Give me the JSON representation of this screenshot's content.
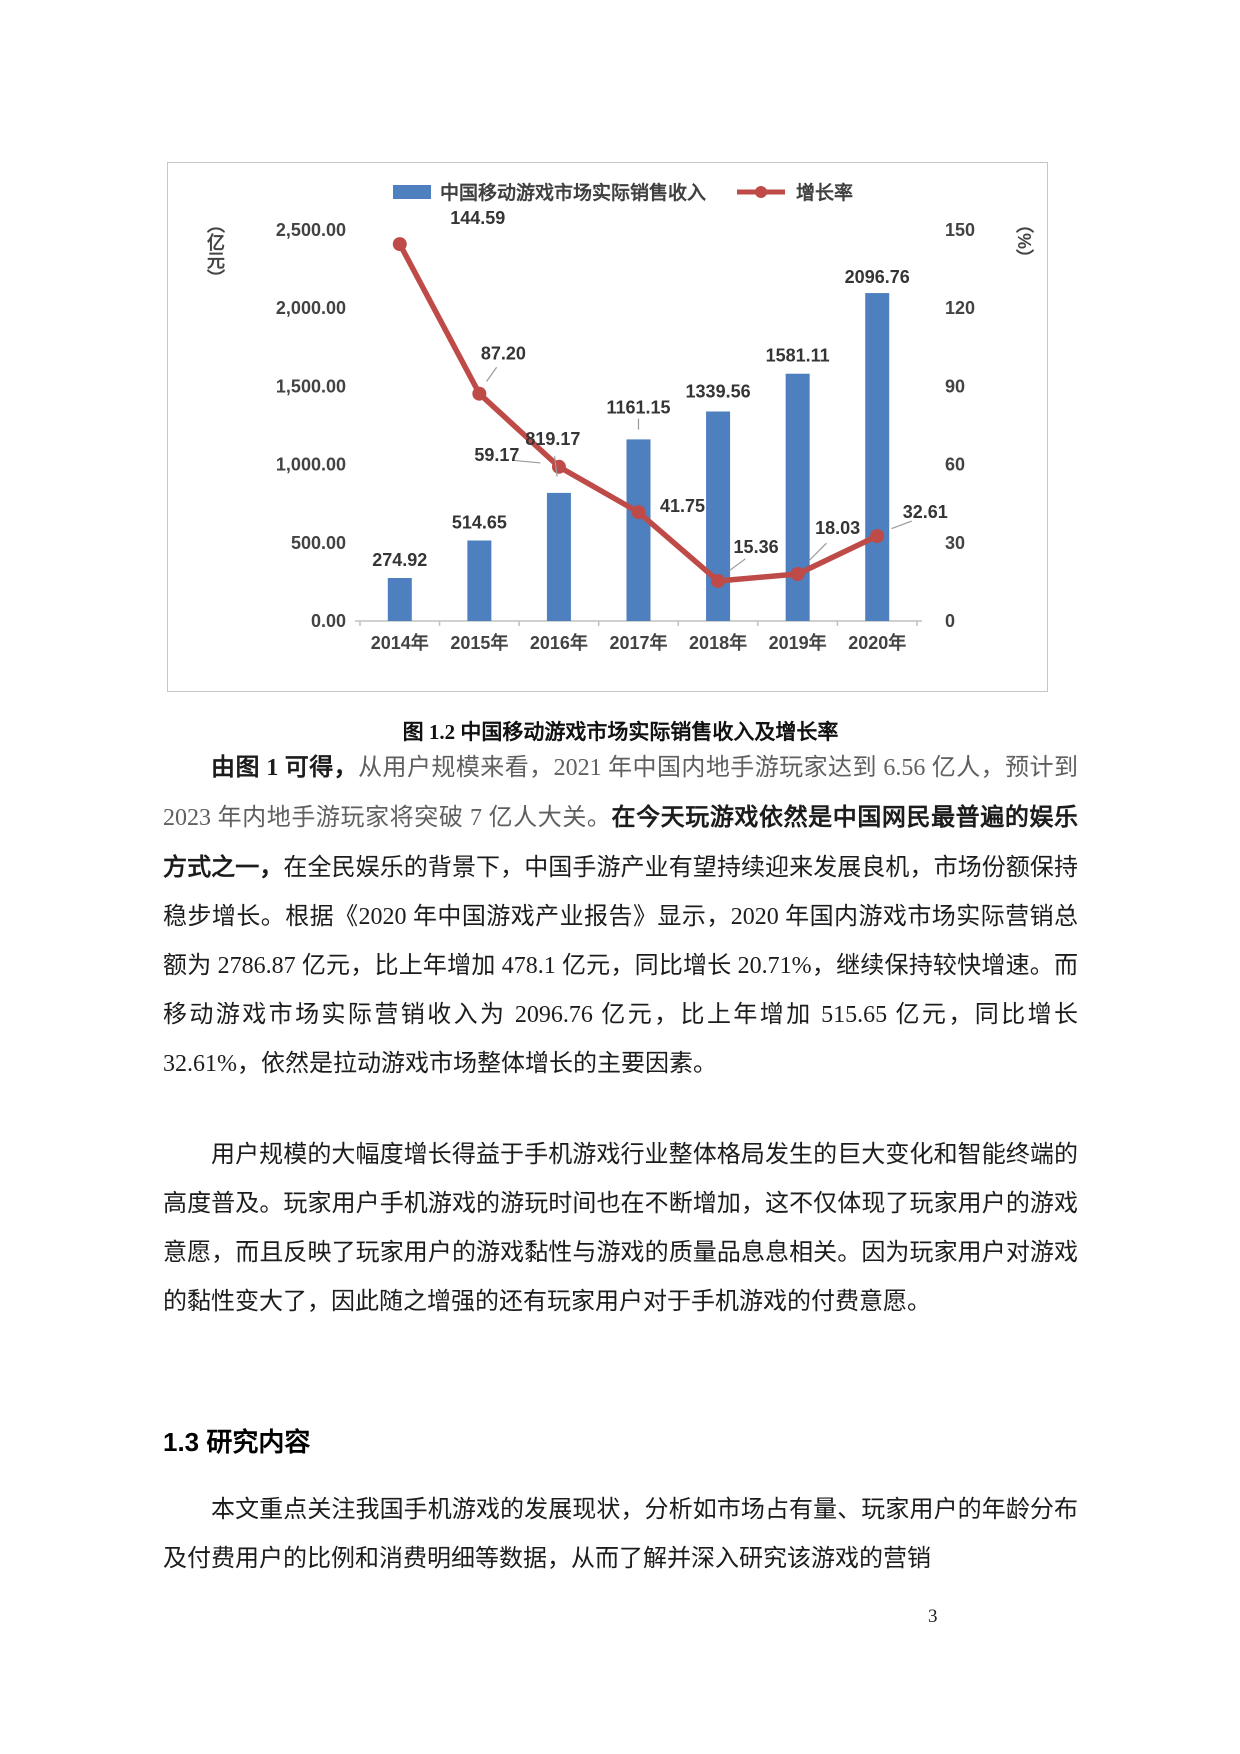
{
  "page": {
    "number": "3"
  },
  "figure": {
    "caption": "图 1.2 中国移动游戏市场实际销售收入及增长率"
  },
  "section": {
    "heading": "1.3 研究内容"
  },
  "paragraphs": {
    "p1": [
      {
        "text": "由图 1 可得，",
        "style": "bold"
      },
      {
        "text": "从用户规模来看，2021 年中国内地手游玩家达到 6.56 亿人，预计到 2023 年内地手游玩家将突破 7 亿人大关。",
        "style": "gray"
      },
      {
        "text": "在今天玩游戏依然是中国网民最普遍的娱乐方式之一，",
        "style": "heavy"
      },
      {
        "text": "在全民娱乐的背景下，中国手游产业有望持续迎来发展良机，市场份额保持稳步增长。根据《2020 年中国游戏产业报告》显示，2020 年国内游戏市场实际营销总额为 2786.87 亿元，比上年增加 478.1 亿元，同比增长 20.71%，继续保持较快增速。而移动游戏市场实际营销收入为 2096.76 亿元，比上年增加 515.65 亿元，同比增长 32.61%，依然是拉动游戏市场整体增长的主要因素。",
        "style": "normal"
      }
    ],
    "p2": [
      {
        "text": "用户规模的大幅度增长得益于手机游戏行业整体格局发生的巨大变化和智能终端的高度普及。玩家用户手机游戏的游玩时间也在不断增加，这不仅体现了玩家用户的游戏意愿，而且反映了玩家用户的游戏黏性与游戏的质量品息息相关。因为玩家用户对游戏的黏性变大了，因此随之增强的还有玩家用户对于手机游戏的付费意愿。",
        "style": "normal"
      }
    ],
    "p3": [
      {
        "text": "本文重点关注我国手机游戏的发展现状，分析如市场占有量、玩家用户的年龄分布及付费用户的比例和消费明细等数据，从而了解并深入研究该游戏的营销",
        "style": "normal"
      }
    ]
  },
  "chart_data": {
    "type": "combo",
    "title": "",
    "categories": [
      "2014年",
      "2015年",
      "2016年",
      "2017年",
      "2018年",
      "2019年",
      "2020年"
    ],
    "series": [
      {
        "name": "中国移动游戏市场实际销售收入",
        "type": "bar",
        "axis": "left",
        "unit": "亿元",
        "color": "#4E7FBF",
        "values": [
          274.92,
          514.65,
          819.17,
          1161.15,
          1339.56,
          1581.11,
          2096.76
        ]
      },
      {
        "name": "增长率",
        "type": "line",
        "axis": "right",
        "unit": "%",
        "color": "#BE4B48",
        "values": [
          144.59,
          87.2,
          59.17,
          41.75,
          15.36,
          18.03,
          32.61
        ]
      }
    ],
    "left_axis": {
      "label": "（亿元）",
      "min": 0,
      "max": 2500,
      "ticks": [
        "2,500.00",
        "2,000.00",
        "1,500.00",
        "1,000.00",
        "500.00",
        "0.00"
      ]
    },
    "right_axis": {
      "label": "（%）",
      "min": 0,
      "max": 150,
      "ticks": [
        "150",
        "120",
        "90",
        "60",
        "30",
        "0"
      ]
    },
    "legend_position": "top",
    "grid": false
  }
}
